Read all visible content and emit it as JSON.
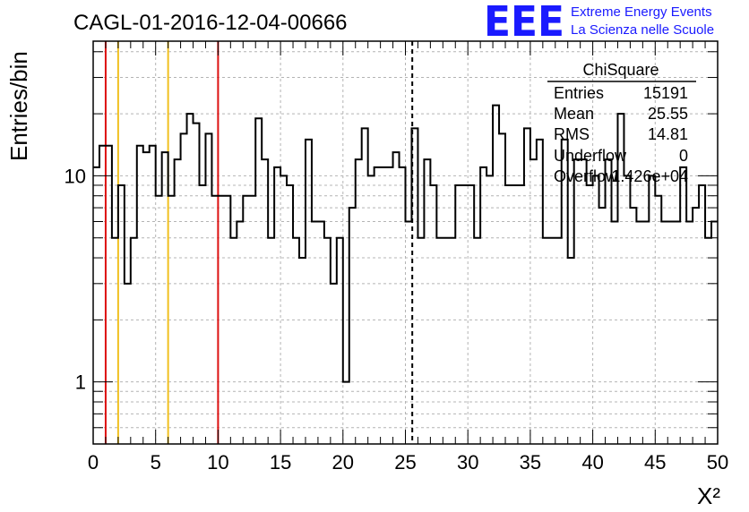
{
  "header": {
    "run_title": "CAGL-01-2016-12-04-00666",
    "logo_text": "EEE",
    "logo_line1": "Extreme Energy Events",
    "logo_line2": "La Scienza nelle Scuole"
  },
  "stats_box": {
    "title": "ChiSquare",
    "rows": [
      {
        "label": "Entries",
        "value": "15191"
      },
      {
        "label": "Mean",
        "value": "25.55"
      },
      {
        "label": "RMS",
        "value": "14.81"
      },
      {
        "label": "Underflow",
        "value": "0"
      },
      {
        "label": "Overflow",
        "value": "1.426e+04"
      }
    ]
  },
  "colors": {
    "histogram": "#000000",
    "red_line": "#dd1111",
    "yellow_line": "#f0c020",
    "grid": "#b4b4b4",
    "logo": "#1a1aff"
  },
  "chart_data": {
    "type": "histogram",
    "title": "CAGL-01-2016-12-04-00666",
    "xlabel": "X²",
    "ylabel": "Entries/bin",
    "xlim": [
      0,
      50
    ],
    "ylim": [
      0.5,
      45
    ],
    "y_scale": "log",
    "grid": true,
    "x_ticks": [
      0,
      5,
      10,
      15,
      20,
      25,
      30,
      35,
      40,
      45,
      50
    ],
    "x_tick_labels": [
      "0",
      "5",
      "10",
      "15",
      "20",
      "25",
      "30",
      "35",
      "40",
      "45",
      "50"
    ],
    "y_ticks": [
      1,
      10
    ],
    "y_tick_labels": [
      "1",
      "10"
    ],
    "bin_edges_start": 0,
    "bin_width": 0.5,
    "counts": [
      11,
      14,
      14,
      5,
      9,
      3,
      5,
      14,
      13,
      14,
      8,
      13,
      8,
      12,
      16,
      20,
      18,
      9,
      16,
      8,
      8,
      8,
      5,
      6,
      8,
      8,
      19,
      12,
      5,
      11,
      10,
      9,
      5,
      4,
      15,
      6,
      6,
      5,
      3,
      5,
      1,
      7,
      12,
      17,
      10,
      11,
      11,
      11,
      13,
      11,
      6,
      17,
      5,
      12,
      9,
      5,
      5,
      5,
      9,
      9,
      9,
      5,
      11,
      10,
      22,
      16,
      9,
      9,
      9,
      17,
      12,
      15,
      5,
      5,
      5,
      15,
      4,
      12,
      12,
      9,
      10,
      7,
      12,
      6,
      20,
      10,
      7,
      6,
      6,
      10,
      8,
      6,
      6,
      6,
      11,
      6,
      7,
      9,
      5,
      6
    ],
    "vertical_lines": [
      {
        "x": 1,
        "color": "red",
        "style": "solid"
      },
      {
        "x": 2,
        "color": "yellow",
        "style": "solid"
      },
      {
        "x": 6,
        "color": "yellow",
        "style": "solid"
      },
      {
        "x": 10,
        "color": "red",
        "style": "solid"
      },
      {
        "x": 25.55,
        "color": "black",
        "style": "dashed"
      }
    ]
  }
}
